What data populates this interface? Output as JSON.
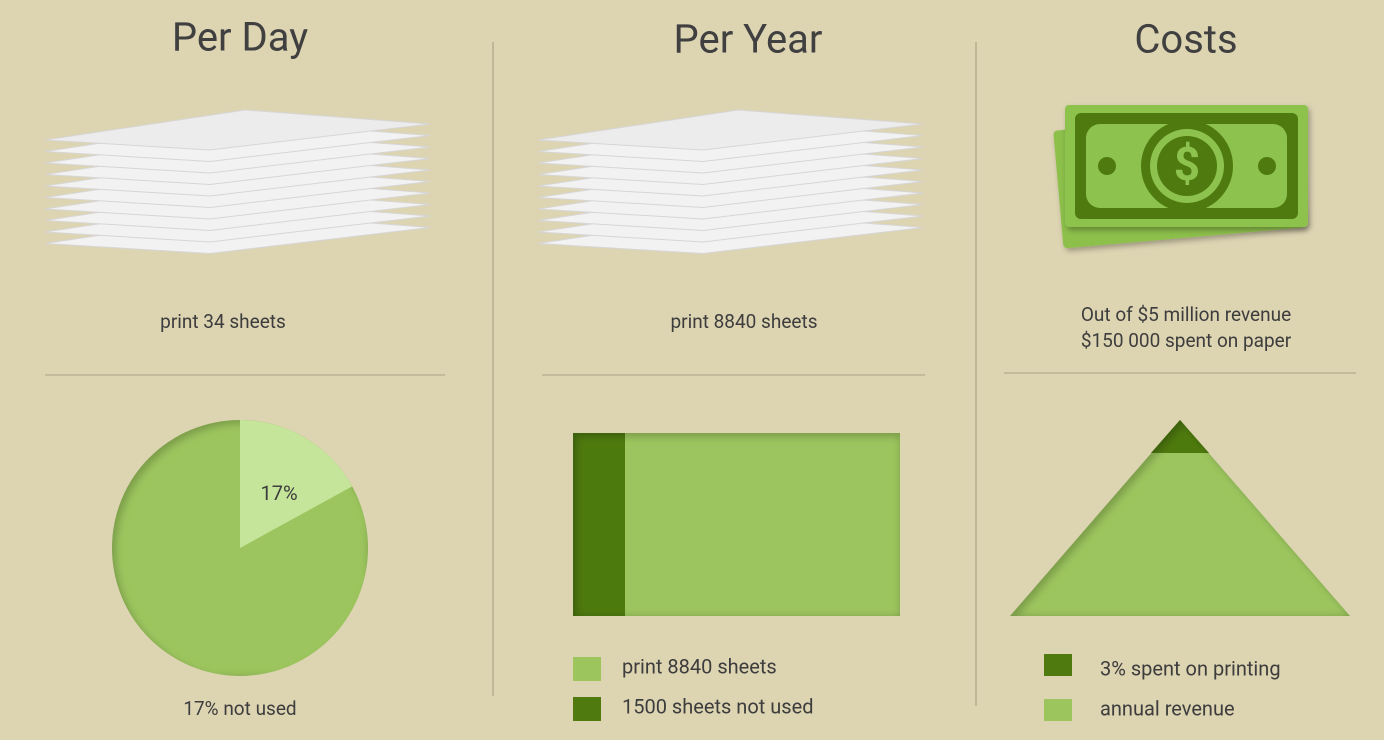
{
  "per_day": {
    "title": "Per Day",
    "caption": "print 34 sheets",
    "pie": {
      "value": 17,
      "label": "17%"
    },
    "footer": "17% not used"
  },
  "per_year": {
    "title": "Per Year",
    "caption": "print 8840 sheets",
    "legend": [
      "print 8840 sheets",
      "1500 sheets not used"
    ]
  },
  "costs": {
    "title": "Costs",
    "icon_symbol": "$",
    "caption": [
      "Out of $5 million revenue",
      "$150 000 spent on paper"
    ],
    "legend": [
      "3% spent on printing",
      "annual revenue"
    ]
  }
}
